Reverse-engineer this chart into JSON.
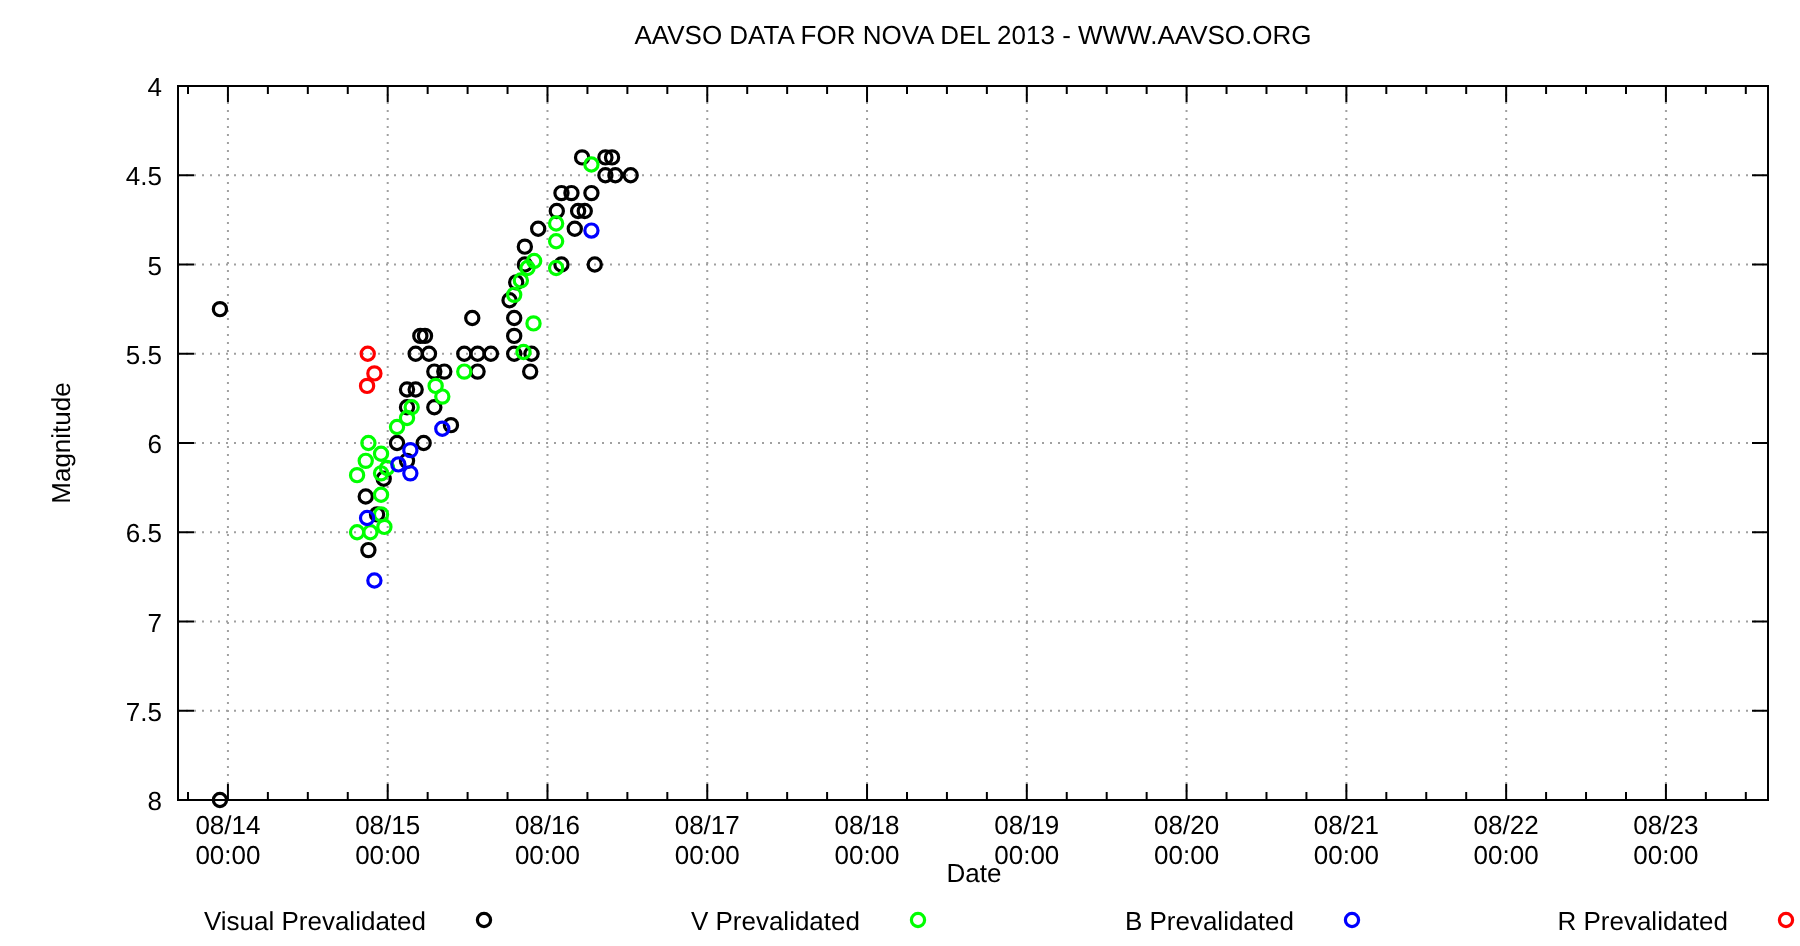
{
  "chart_data": {
    "type": "scatter",
    "title": "AAVSO DATA FOR NOVA DEL 2013 - WWW.AAVSO.ORG",
    "xlabel": "Date",
    "ylabel": "Magnitude",
    "marker": "circle",
    "grid": true,
    "legend": "bottom",
    "xlim": [
      "2013-08-13T16:30",
      "2013-08-23T15:20"
    ],
    "ylim": [
      8,
      4
    ],
    "yticks": [
      4,
      4.5,
      5,
      5.5,
      6,
      6.5,
      7,
      7.5,
      8
    ],
    "xticks": [
      {
        "value": "2013-08-13T18:00",
        "label": null
      },
      {
        "value": "2013-08-14T00:00",
        "label": "08/14\n00:00"
      },
      {
        "value": "2013-08-14T06:00",
        "label": null
      },
      {
        "value": "2013-08-14T12:00",
        "label": null
      },
      {
        "value": "2013-08-14T18:00",
        "label": null
      },
      {
        "value": "2013-08-15T00:00",
        "label": "08/15\n00:00"
      },
      {
        "value": "2013-08-15T06:00",
        "label": null
      },
      {
        "value": "2013-08-15T12:00",
        "label": null
      },
      {
        "value": "2013-08-15T18:00",
        "label": null
      },
      {
        "value": "2013-08-16T00:00",
        "label": "08/16\n00:00"
      },
      {
        "value": "2013-08-16T06:00",
        "label": null
      },
      {
        "value": "2013-08-16T12:00",
        "label": null
      },
      {
        "value": "2013-08-16T18:00",
        "label": null
      },
      {
        "value": "2013-08-17T00:00",
        "label": "08/17\n00:00"
      },
      {
        "value": "2013-08-17T06:00",
        "label": null
      },
      {
        "value": "2013-08-17T12:00",
        "label": null
      },
      {
        "value": "2013-08-17T18:00",
        "label": null
      },
      {
        "value": "2013-08-18T00:00",
        "label": "08/18\n00:00"
      },
      {
        "value": "2013-08-18T06:00",
        "label": null
      },
      {
        "value": "2013-08-18T12:00",
        "label": null
      },
      {
        "value": "2013-08-18T18:00",
        "label": null
      },
      {
        "value": "2013-08-19T00:00",
        "label": "08/19\n00:00"
      },
      {
        "value": "2013-08-19T06:00",
        "label": null
      },
      {
        "value": "2013-08-19T12:00",
        "label": null
      },
      {
        "value": "2013-08-19T18:00",
        "label": null
      },
      {
        "value": "2013-08-20T00:00",
        "label": "08/20\n00:00"
      },
      {
        "value": "2013-08-20T06:00",
        "label": null
      },
      {
        "value": "2013-08-20T12:00",
        "label": null
      },
      {
        "value": "2013-08-20T18:00",
        "label": null
      },
      {
        "value": "2013-08-21T00:00",
        "label": "08/21\n00:00"
      },
      {
        "value": "2013-08-21T06:00",
        "label": null
      },
      {
        "value": "2013-08-21T12:00",
        "label": null
      },
      {
        "value": "2013-08-21T18:00",
        "label": null
      },
      {
        "value": "2013-08-22T00:00",
        "label": "08/22\n00:00"
      },
      {
        "value": "2013-08-22T06:00",
        "label": null
      },
      {
        "value": "2013-08-22T12:00",
        "label": null
      },
      {
        "value": "2013-08-22T18:00",
        "label": null
      },
      {
        "value": "2013-08-23T00:00",
        "label": "08/23\n00:00"
      },
      {
        "value": "2013-08-23T06:00",
        "label": null
      },
      {
        "value": "2013-08-23T12:00",
        "label": null
      }
    ],
    "series": [
      {
        "name": "Visual Prevalidated",
        "color": "#000000",
        "x": [
          "2013-08-13T22:48",
          "2013-08-13T22:48",
          "2013-08-14T21:06",
          "2013-08-14T20:42",
          "2013-08-14T22:24",
          "2013-08-14T23:24",
          "2013-08-15T02:54",
          "2013-08-15T02:54",
          "2013-08-15T04:12",
          "2013-08-15T01:24",
          "2013-08-15T05:24",
          "2013-08-15T07:00",
          "2013-08-15T02:54",
          "2013-08-15T04:54",
          "2013-08-15T05:36",
          "2013-08-15T04:12",
          "2013-08-15T06:12",
          "2013-08-15T07:00",
          "2013-08-15T08:30",
          "2013-08-15T09:30",
          "2013-08-15T11:30",
          "2013-08-15T13:30",
          "2013-08-15T15:30",
          "2013-08-15T13:30",
          "2013-08-15T12:42",
          "2013-08-15T18:18",
          "2013-08-15T19:18",
          "2013-08-15T20:36",
          "2013-08-15T20:36",
          "2013-08-15T19:00",
          "2013-08-15T19:00",
          "2013-08-15T19:00",
          "2013-08-15T21:36",
          "2013-08-15T21:24",
          "2013-08-15T22:36",
          "2013-08-16T01:24",
          "2013-08-16T02:06",
          "2013-08-16T03:36",
          "2013-08-16T04:36",
          "2013-08-16T05:36",
          "2013-08-16T04:06",
          "2013-08-16T02:06",
          "2013-08-16T06:36",
          "2013-08-16T05:12",
          "2013-08-16T08:42",
          "2013-08-16T09:42",
          "2013-08-16T08:42",
          "2013-08-16T10:12",
          "2013-08-16T12:30",
          "2013-08-16T07:06"
        ],
        "values": [
          5.25,
          8,
          6.6,
          6.3,
          6.4,
          6.2,
          5.8,
          5.7,
          5.7,
          6,
          6,
          5.8,
          6.1,
          5.4,
          5.4,
          5.5,
          5.5,
          5.6,
          5.6,
          5.9,
          5.5,
          5.5,
          5.5,
          5.6,
          5.3,
          5.2,
          5.1,
          5,
          4.9,
          5.3,
          5.4,
          5.5,
          5.5,
          5.6,
          4.8,
          4.7,
          4.6,
          4.6,
          4.7,
          4.7,
          4.8,
          5,
          4.6,
          4.4,
          4.4,
          4.4,
          4.5,
          4.5,
          4.5,
          5
        ]
      },
      {
        "name": "V Prevalidated",
        "color": "#00ff00",
        "x": [
          "2013-08-14T21:06",
          "2013-08-14T20:42",
          "2013-08-14T19:24",
          "2013-08-14T19:24",
          "2013-08-14T21:24",
          "2013-08-14T23:00",
          "2013-08-14T23:00",
          "2013-08-14T23:00",
          "2013-08-14T23:00",
          "2013-08-14T23:30",
          "2013-08-14T23:54",
          "2013-08-15T01:24",
          "2013-08-15T02:54",
          "2013-08-15T03:36",
          "2013-08-15T07:12",
          "2013-08-15T08:12",
          "2013-08-15T11:30",
          "2013-08-15T19:00",
          "2013-08-15T20:00",
          "2013-08-15T21:00",
          "2013-08-15T22:00",
          "2013-08-15T20:24",
          "2013-08-15T21:54",
          "2013-08-16T01:18",
          "2013-08-16T01:18",
          "2013-08-16T01:18",
          "2013-08-16T06:36"
        ],
        "values": [
          6,
          6.1,
          6.18,
          6.5,
          6.5,
          6.06,
          6.17,
          6.29,
          6.4,
          6.47,
          6.14,
          5.91,
          5.86,
          5.8,
          5.68,
          5.74,
          5.6,
          5.17,
          5.09,
          5.02,
          4.98,
          5.49,
          5.33,
          4.77,
          4.87,
          5.02,
          4.44
        ]
      },
      {
        "name": "B Prevalidated",
        "color": "#0000ff",
        "x": [
          "2013-08-14T20:54",
          "2013-08-14T22:00",
          "2013-08-15T01:36",
          "2013-08-15T03:24",
          "2013-08-15T03:24",
          "2013-08-15T08:12",
          "2013-08-16T06:36"
        ],
        "values": [
          6.42,
          6.77,
          6.12,
          6.04,
          6.17,
          5.92,
          4.81
        ]
      },
      {
        "name": "R Prevalidated",
        "color": "#ff0000",
        "x": [
          "2013-08-14T21:00",
          "2013-08-14T22:00",
          "2013-08-14T20:54"
        ],
        "values": [
          5.5,
          5.61,
          5.68
        ]
      }
    ]
  }
}
